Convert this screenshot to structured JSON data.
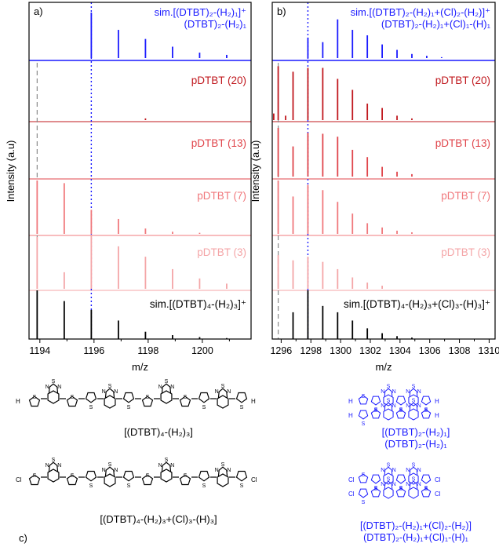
{
  "colors": {
    "sim_blue": "#1a1aff",
    "s20": "#c0181e",
    "s13": "#e0454b",
    "s7": "#f0787c",
    "s3": "#f4a5a7",
    "black": "#000000",
    "dashed_gray": "#8a8a8a",
    "dotted_blue": "#1a1aff"
  },
  "y_axis_label": "Intensity (a.u)",
  "chart_data": [
    {
      "type": "line",
      "panel_label": "a)",
      "xlabel": "m/z",
      "xlim": [
        1193.6,
        1201.8
      ],
      "xticks": [
        1194,
        1196,
        1198,
        1200
      ],
      "dashed_marker": 1193.9,
      "dotted_marker": 1195.9,
      "traces": [
        {
          "key": "sim_top",
          "label_lines": [
            "sim.[(DTBT)₂-(H₂)₁]⁺",
            "(DTBT)₂-(H₂)₁"
          ],
          "color_key": "sim_blue",
          "peaks": [
            [
              1195.9,
              1.0
            ],
            [
              1196.9,
              0.62
            ],
            [
              1197.9,
              0.42
            ],
            [
              1198.9,
              0.25
            ],
            [
              1199.9,
              0.12
            ],
            [
              1200.9,
              0.07
            ]
          ]
        },
        {
          "key": "p20",
          "label_lines": [
            "pDTBT (20)"
          ],
          "color_key": "s20",
          "peaks": [
            [
              1197.9,
              0.03
            ]
          ]
        },
        {
          "key": "p13",
          "label_lines": [
            "pDTBT (13)"
          ],
          "color_key": "s13",
          "peaks": []
        },
        {
          "key": "p7",
          "label_lines": [
            "pDTBT (7)"
          ],
          "color_key": "s7",
          "peaks": [
            [
              1193.9,
              1.0
            ],
            [
              1194.9,
              0.95
            ],
            [
              1195.9,
              0.45
            ],
            [
              1196.9,
              0.28
            ],
            [
              1197.9,
              0.1
            ],
            [
              1198.9,
              0.04
            ],
            [
              1199.9,
              0.02
            ]
          ]
        },
        {
          "key": "p3",
          "label_lines": [
            "pDTBT (3)"
          ],
          "color_key": "s3",
          "peaks": [
            [
              1193.9,
              1.0
            ],
            [
              1194.9,
              0.32
            ],
            [
              1195.9,
              1.05
            ],
            [
              1196.9,
              0.82
            ],
            [
              1197.9,
              0.62
            ],
            [
              1198.9,
              0.38
            ],
            [
              1199.9,
              0.2
            ],
            [
              1200.9,
              0.1
            ]
          ]
        },
        {
          "key": "sim_bottom",
          "label_lines": [
            "sim.[(DTBT)₄-(H₂)₃]⁺"
          ],
          "color_key": "black",
          "peaks": [
            [
              1193.9,
              1.0
            ],
            [
              1194.9,
              0.78
            ],
            [
              1195.9,
              0.6
            ],
            [
              1196.9,
              0.38
            ],
            [
              1197.9,
              0.15
            ],
            [
              1198.9,
              0.08
            ],
            [
              1199.9,
              0.04
            ],
            [
              1200.9,
              0.02
            ]
          ]
        }
      ]
    },
    {
      "type": "line",
      "panel_label": "b)",
      "xlabel": "m/z",
      "xlim": [
        1295.4,
        1310.4
      ],
      "xticks": [
        1296,
        1298,
        1300,
        1302,
        1304,
        1306,
        1308,
        1310
      ],
      "dashed_marker": 1295.8,
      "dotted_marker": 1297.8,
      "traces": [
        {
          "key": "sim_top",
          "label_lines": [
            "sim.[(DTBT)₂-(H₂)₁+(Cl)₂-(H₂)]⁺",
            "(DTBT)₂-(H₂)₁+(Cl)₁-(H)₁"
          ],
          "color_key": "sim_blue",
          "peaks": [
            [
              1297.8,
              0.45
            ],
            [
              1298.8,
              0.35
            ],
            [
              1299.8,
              0.85
            ],
            [
              1300.8,
              0.62
            ],
            [
              1301.8,
              0.5
            ],
            [
              1302.8,
              0.3
            ],
            [
              1303.8,
              0.18
            ],
            [
              1304.8,
              0.09
            ],
            [
              1305.8,
              0.05
            ],
            [
              1306.8,
              0.02
            ]
          ]
        },
        {
          "key": "p20",
          "label_lines": [
            "pDTBT (20)"
          ],
          "color_key": "s20",
          "peaks": [
            [
              1295.5,
              0.12
            ],
            [
              1295.8,
              0.98
            ],
            [
              1296.3,
              0.08
            ],
            [
              1296.8,
              0.88
            ],
            [
              1297.8,
              0.95
            ],
            [
              1298.8,
              0.95
            ],
            [
              1299.8,
              0.75
            ],
            [
              1300.8,
              0.55
            ],
            [
              1301.8,
              0.3
            ],
            [
              1302.8,
              0.22
            ],
            [
              1303.8,
              0.08
            ],
            [
              1304.8,
              0.03
            ]
          ]
        },
        {
          "key": "p13",
          "label_lines": [
            "pDTBT (13)"
          ],
          "color_key": "s13",
          "peaks": [
            [
              1295.8,
              1.0
            ],
            [
              1296.8,
              0.62
            ],
            [
              1297.8,
              0.9
            ],
            [
              1298.8,
              0.88
            ],
            [
              1299.8,
              0.82
            ],
            [
              1300.8,
              0.55
            ],
            [
              1301.8,
              0.4
            ],
            [
              1302.8,
              0.2
            ],
            [
              1303.8,
              0.1
            ],
            [
              1304.8,
              0.05
            ]
          ]
        },
        {
          "key": "p7",
          "label_lines": [
            "pDTBT (7)"
          ],
          "color_key": "s7",
          "peaks": [
            [
              1295.8,
              1.0
            ],
            [
              1296.8,
              0.7
            ],
            [
              1297.8,
              0.92
            ],
            [
              1298.8,
              0.82
            ],
            [
              1299.8,
              0.6
            ],
            [
              1300.8,
              0.38
            ],
            [
              1301.8,
              0.2
            ],
            [
              1302.8,
              0.12
            ],
            [
              1303.8,
              0.06
            ],
            [
              1304.8,
              0.03
            ]
          ]
        },
        {
          "key": "p3",
          "label_lines": [
            "pDTBT (3)"
          ],
          "color_key": "s3",
          "peaks": [
            [
              1295.8,
              0.65
            ],
            [
              1296.8,
              0.55
            ],
            [
              1297.8,
              0.62
            ],
            [
              1298.8,
              0.52
            ],
            [
              1299.8,
              0.38
            ],
            [
              1300.8,
              0.22
            ],
            [
              1301.8,
              0.12
            ],
            [
              1302.8,
              0.06
            ]
          ]
        },
        {
          "key": "sim_bottom",
          "label_lines": [
            "sim.[(DTBT)₄-(H₂)₃+(Cl)₃-(H)₃]⁺"
          ],
          "color_key": "black",
          "peaks": [
            [
              1296.8,
              0.55
            ],
            [
              1297.8,
              1.0
            ],
            [
              1298.8,
              0.68
            ],
            [
              1299.8,
              0.55
            ],
            [
              1300.8,
              0.38
            ],
            [
              1301.8,
              0.22
            ],
            [
              1302.8,
              0.12
            ],
            [
              1303.8,
              0.06
            ],
            [
              1304.8,
              0.03
            ]
          ]
        }
      ]
    }
  ],
  "structures": {
    "label_c": "c)",
    "s1": "[(DTBT)₄-(H₂)₃]",
    "s2_lines": [
      "[(DTBT)₂-(H₂)₁]",
      "(DTBT)₂-(H₂)₁"
    ],
    "s3": "[(DTBT)₄-(H₂)₃+(Cl)₃-(H)₃]",
    "s4_lines": [
      "[(DTBT)₂-(H₂)₁+(Cl)₂-(H₂)]",
      "(DTBT)₂-(H₂)₁+(Cl)₁-(H)₁"
    ],
    "atoms": {
      "h": "H",
      "cl": "Cl",
      "s": "S",
      "n": "N"
    }
  }
}
